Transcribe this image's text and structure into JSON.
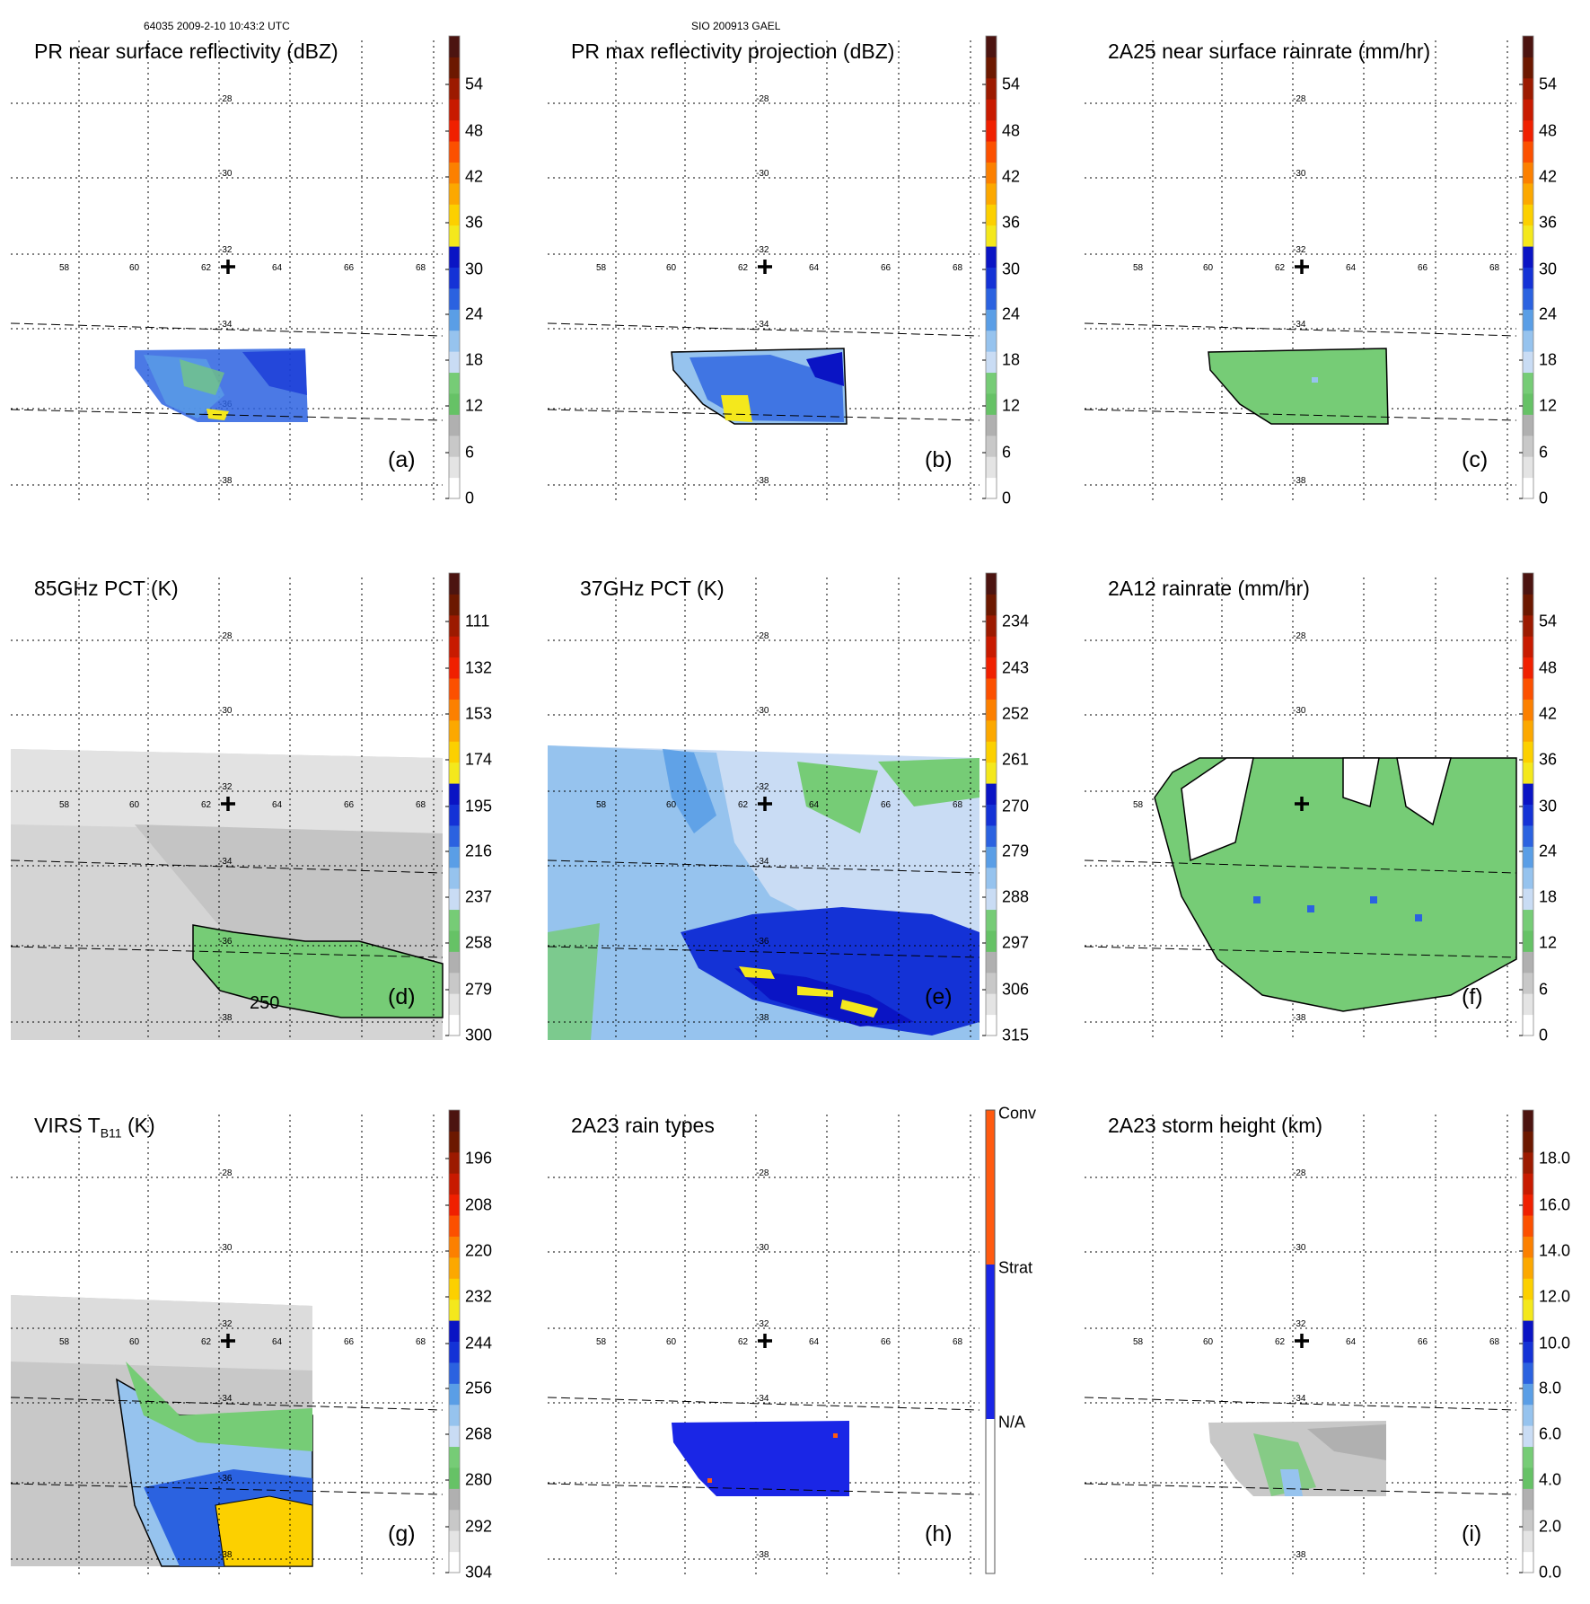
{
  "header": {
    "left": "64035 2009-2-10 10:43:2 UTC",
    "center": "SIO 200913 GAEL"
  },
  "lat_labels": [
    "-28",
    "-30",
    "-32",
    "-34",
    "-36",
    "-38"
  ],
  "lon_labels": [
    "58",
    "60",
    "62",
    "64",
    "66",
    "68"
  ],
  "colors": {
    "ramp": [
      "#ffffff",
      "#e4e4e4",
      "#c8c8c8",
      "#b0b0b0",
      "#66c266",
      "#76cc76",
      "#c9dcf4",
      "#96c3ee",
      "#5a9ee6",
      "#2b62e0",
      "#1432d6",
      "#0a14c4",
      "#f4e81c",
      "#fcd000",
      "#fca800",
      "#fc8000",
      "#fc5000",
      "#f02000",
      "#c81a00",
      "#9c1a00",
      "#6c1800",
      "#4c1410"
    ],
    "conv": "#ff5a10",
    "strat": "#1a26e6",
    "na": "#ffffff"
  },
  "panels": [
    {
      "title": "PR near surface reflectivity (dBZ)",
      "label": "(a)",
      "ticks": [
        "54",
        "48",
        "42",
        "36",
        "30",
        "24",
        "18",
        "12",
        "6",
        "0"
      ]
    },
    {
      "title": "PR max reflectivity projection (dBZ)",
      "label": "(b)",
      "ticks": [
        "54",
        "48",
        "42",
        "36",
        "30",
        "24",
        "18",
        "12",
        "6",
        "0"
      ]
    },
    {
      "title": "2A25 near surface rainrate (mm/hr)",
      "label": "(c)",
      "ticks": [
        "54",
        "48",
        "42",
        "36",
        "30",
        "24",
        "18",
        "12",
        "6",
        "0"
      ]
    },
    {
      "title": "85GHz PCT (K)",
      "label": "(d)",
      "ticks": [
        "111",
        "132",
        "153",
        "174",
        "195",
        "216",
        "237",
        "258",
        "279",
        "300"
      ],
      "contour_label": "250"
    },
    {
      "title": "37GHz PCT (K)",
      "label": "(e)",
      "ticks": [
        "234",
        "243",
        "252",
        "261",
        "270",
        "279",
        "288",
        "297",
        "306",
        "315"
      ]
    },
    {
      "title": "2A12 rainrate (mm/hr)",
      "label": "(f)",
      "ticks": [
        "54",
        "48",
        "42",
        "36",
        "30",
        "24",
        "18",
        "12",
        "6",
        "0"
      ]
    },
    {
      "title": "VIRS T",
      "title_sub": "B11",
      "title_unit": " (K)",
      "label": "(g)",
      "ticks": [
        "196",
        "208",
        "220",
        "232",
        "244",
        "256",
        "268",
        "280",
        "292",
        "304"
      ]
    },
    {
      "title": "2A23 rain types",
      "label": "(h)",
      "ticks_rain": [
        "Conv",
        "Strat",
        "N/A"
      ]
    },
    {
      "title": "2A23 storm height (km)",
      "label": "(i)",
      "ticks": [
        "18.0",
        "16.0",
        "14.0",
        "12.0",
        "10.0",
        "8.0",
        "6.0",
        "4.0",
        "2.0",
        "0.0"
      ]
    }
  ]
}
